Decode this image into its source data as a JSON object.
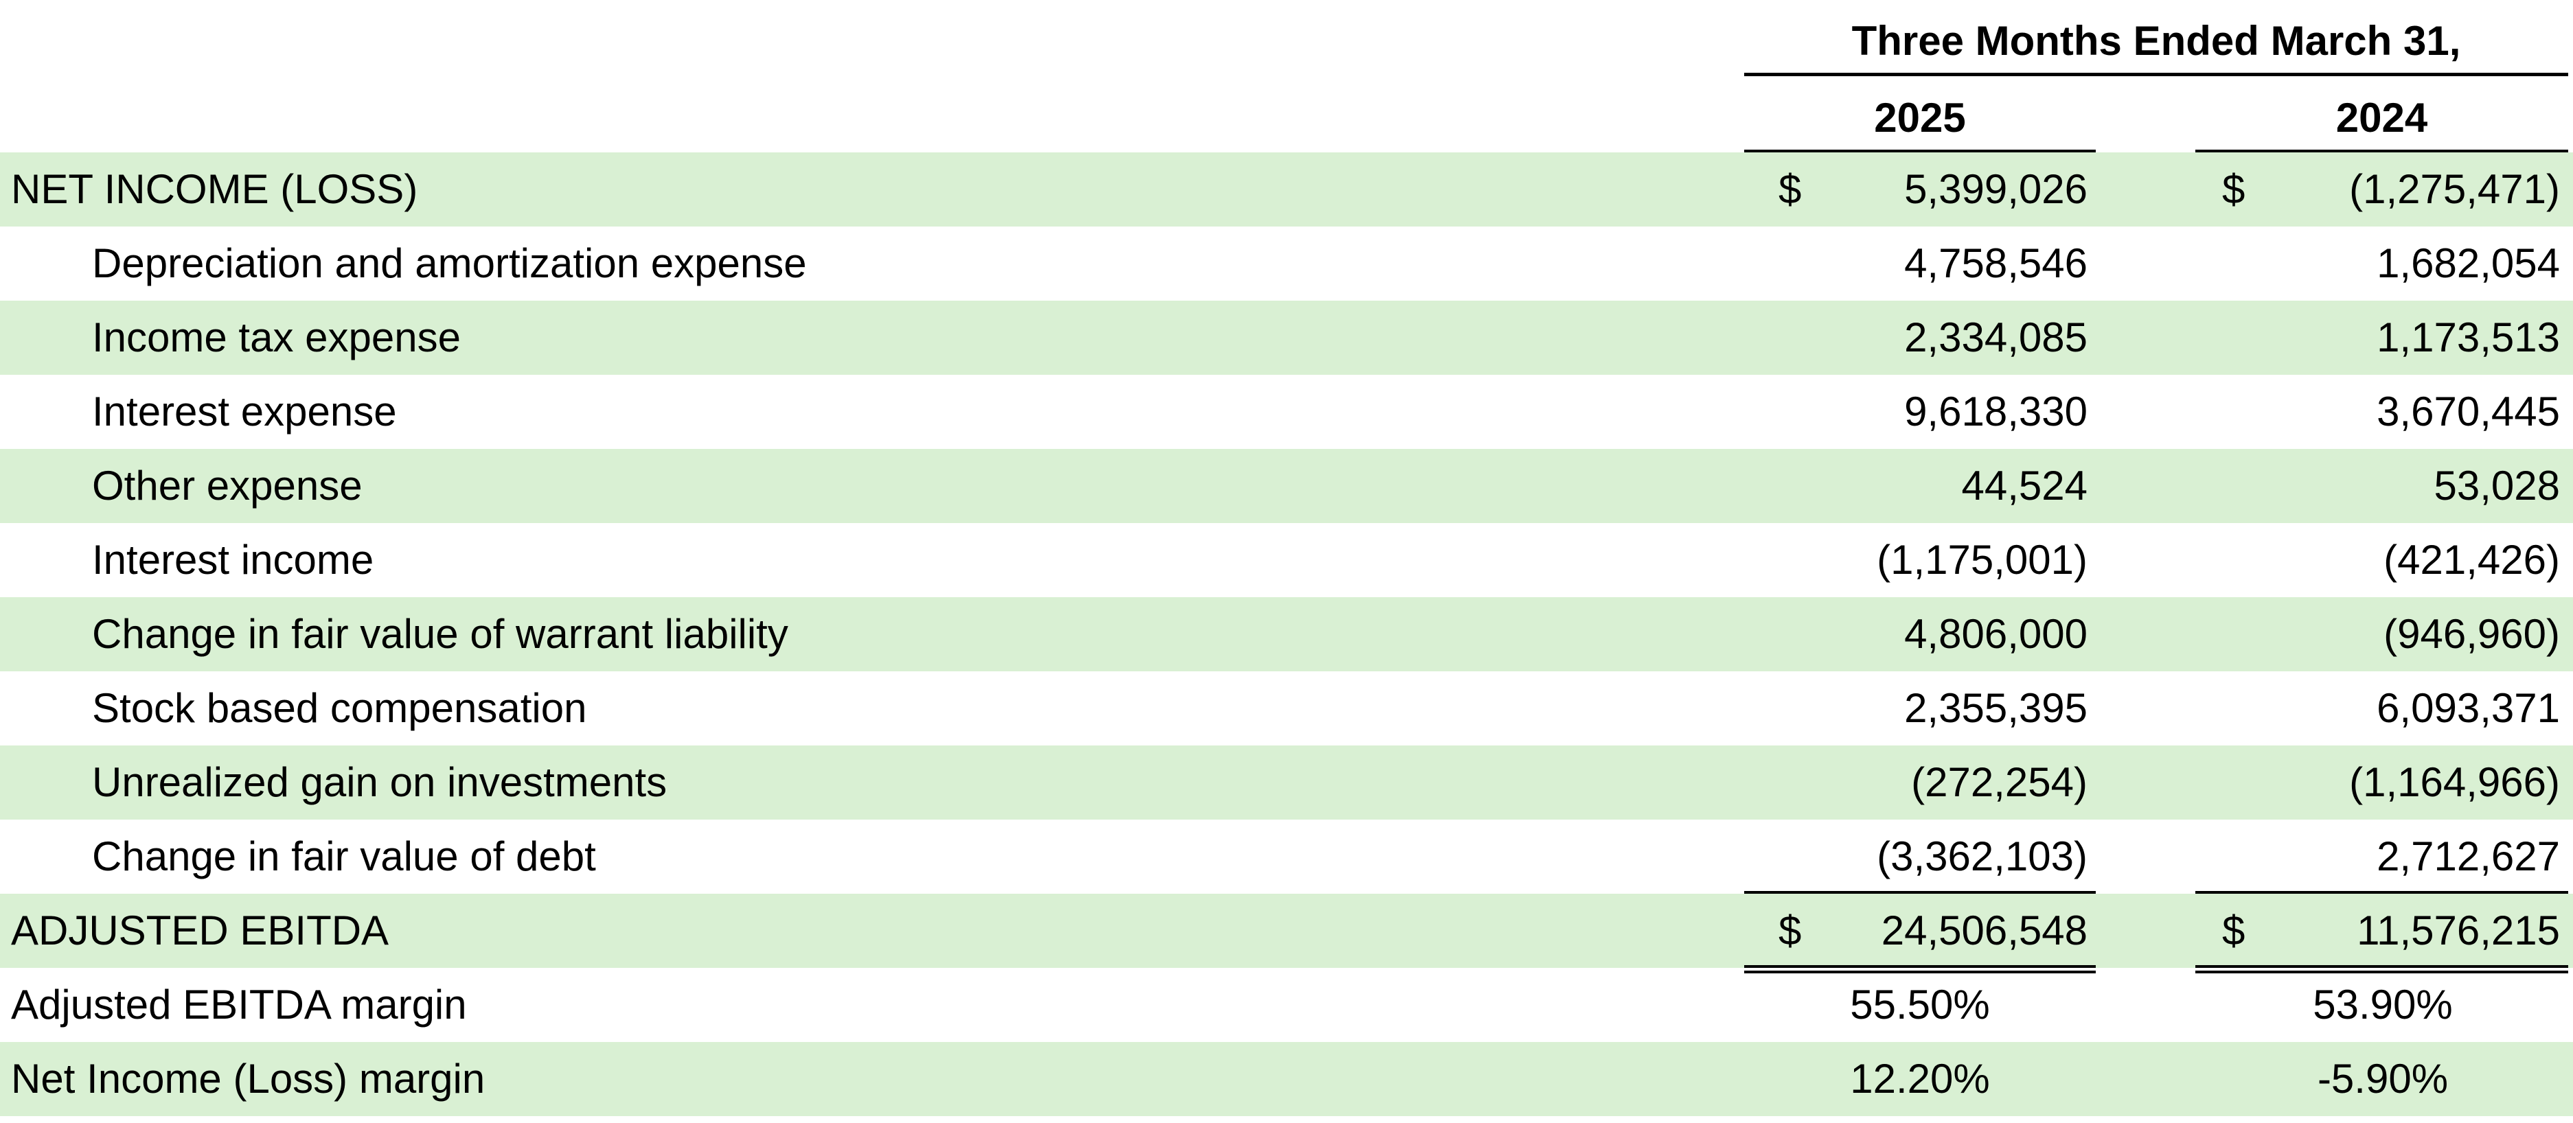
{
  "header": {
    "title": "Three Months Ended March 31,",
    "columns": [
      "2025",
      "2024"
    ]
  },
  "table": {
    "rows": [
      {
        "label": "NET INCOME (LOSS)",
        "level": 0,
        "currency": "$",
        "values": [
          "5,399,026",
          "(1,275,471)"
        ]
      },
      {
        "label": "Depreciation and amortization expense",
        "level": 1,
        "values": [
          "4,758,546",
          "1,682,054"
        ]
      },
      {
        "label": "Income tax expense",
        "level": 1,
        "values": [
          "2,334,085",
          "1,173,513"
        ]
      },
      {
        "label": "Interest expense",
        "level": 1,
        "values": [
          "9,618,330",
          "3,670,445"
        ]
      },
      {
        "label": "Other expense",
        "level": 1,
        "values": [
          "44,524",
          "53,028"
        ]
      },
      {
        "label": "Interest income",
        "level": 1,
        "values": [
          "(1,175,001)",
          "(421,426)"
        ]
      },
      {
        "label": "Change in fair value of warrant liability",
        "level": 1,
        "values": [
          "4,806,000",
          "(946,960)"
        ]
      },
      {
        "label": "Stock based compensation",
        "level": 1,
        "values": [
          "2,355,395",
          "6,093,371"
        ]
      },
      {
        "label": "Unrealized gain on investments",
        "level": 1,
        "values": [
          "(272,254)",
          "(1,164,966)"
        ]
      },
      {
        "label": "Change in fair value of debt",
        "level": 1,
        "rule_below": "single",
        "values": [
          "(3,362,103)",
          "2,712,627"
        ]
      },
      {
        "label": "ADJUSTED EBITDA",
        "level": 0,
        "currency": "$",
        "rule_below": "double",
        "values": [
          "24,506,548",
          "11,576,215"
        ]
      },
      {
        "label": "Adjusted EBITDA margin",
        "level": 0,
        "align": "center",
        "values": [
          "55.50%",
          "53.90%"
        ]
      },
      {
        "label": "Net Income (Loss) margin",
        "level": 0,
        "align": "center",
        "values": [
          "12.20%",
          "-5.90%"
        ]
      }
    ]
  }
}
